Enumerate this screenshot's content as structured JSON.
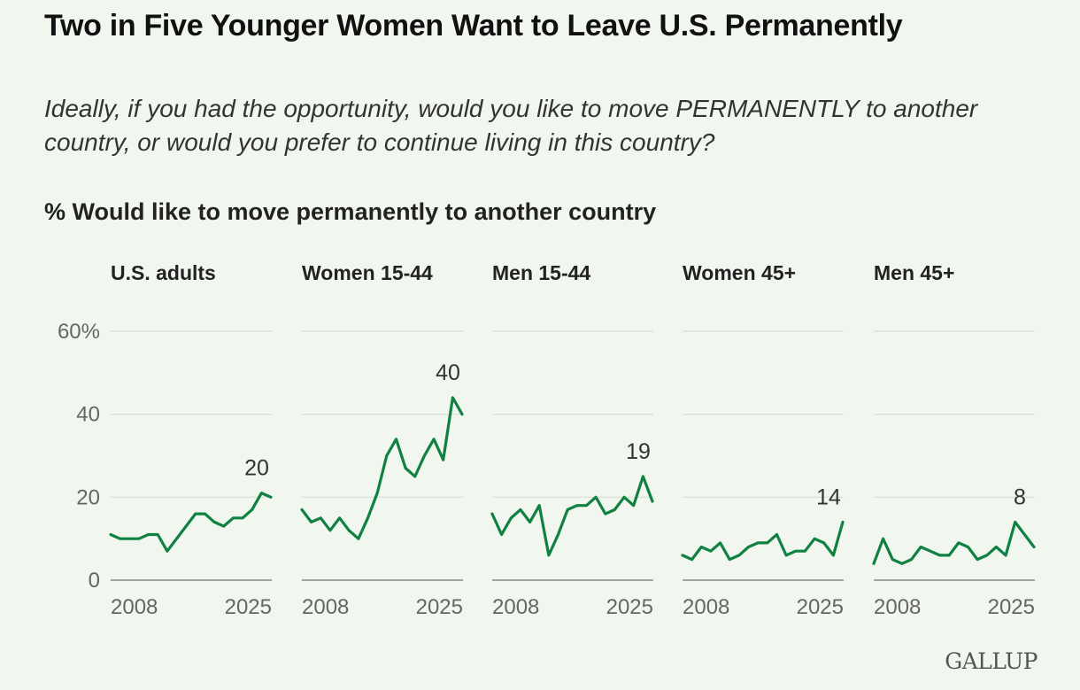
{
  "header": {
    "title": "Two in Five Younger Women Want to Leave U.S. Permanently",
    "subtitle": "Ideally, if you had the opportunity, would you like to move PERMANENTLY to another country, or would you prefer to continue living in this country?",
    "measure": "% Would like to move permanently to another country"
  },
  "brand": {
    "logo_text": "GALLUP"
  },
  "colors": {
    "line": "#0f8140",
    "grid": "#d7dfd4",
    "axis_text": "#666666",
    "label_text": "#333333",
    "background": "#f1f6ef"
  },
  "chart_data": {
    "type": "line",
    "layout": "small-multiples",
    "ylim": [
      0,
      60
    ],
    "y_ticks": [
      0,
      20,
      40,
      60
    ],
    "y_tick_labels": [
      "0",
      "20",
      "40",
      "60%"
    ],
    "x_tick_labels": [
      "2008",
      "2025"
    ],
    "panels": [
      {
        "name": "U.S. adults",
        "last_label": "20",
        "values": [
          11,
          10,
          10,
          10,
          11,
          11,
          7,
          10,
          13,
          16,
          16,
          14,
          13,
          15,
          15,
          17,
          21,
          20
        ]
      },
      {
        "name": "Women 15-44",
        "last_label": "40",
        "values": [
          17,
          14,
          15,
          12,
          15,
          12,
          10,
          15,
          21,
          30,
          34,
          27,
          25,
          30,
          34,
          29,
          44,
          40
        ]
      },
      {
        "name": "Men 15-44",
        "last_label": "19",
        "values": [
          16,
          11,
          15,
          17,
          14,
          18,
          6,
          11,
          17,
          18,
          18,
          20,
          16,
          17,
          20,
          18,
          25,
          19
        ]
      },
      {
        "name": "Women 45+",
        "last_label": "14",
        "values": [
          6,
          5,
          8,
          7,
          9,
          5,
          6,
          8,
          9,
          9,
          11,
          6,
          7,
          7,
          10,
          9,
          6,
          14
        ]
      },
      {
        "name": "Men 45+",
        "last_label": "8",
        "values": [
          4,
          10,
          5,
          4,
          5,
          8,
          7,
          6,
          6,
          9,
          8,
          5,
          6,
          8,
          6,
          14,
          11,
          8
        ]
      }
    ]
  }
}
